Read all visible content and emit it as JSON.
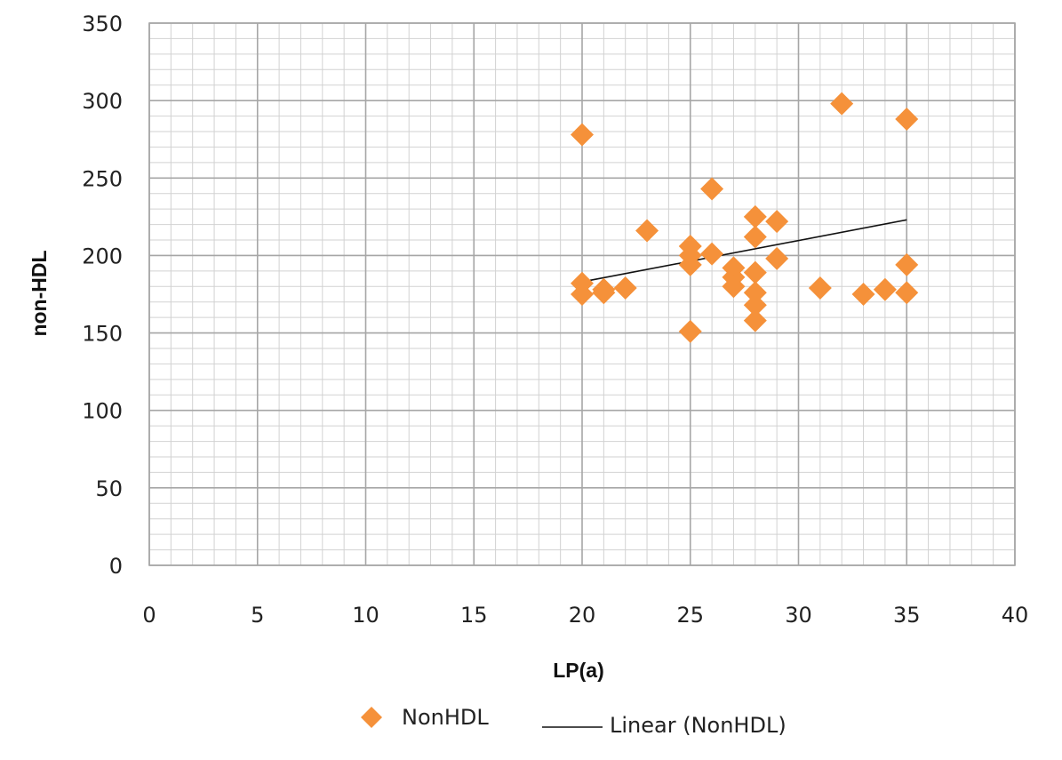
{
  "chart_data": {
    "type": "scatter",
    "xlabel": "LP(a)",
    "ylabel": "non-HDL",
    "xlim": [
      0,
      40
    ],
    "ylim": [
      0,
      350
    ],
    "x_ticks": [
      0,
      5,
      10,
      15,
      20,
      25,
      30,
      35,
      40
    ],
    "y_ticks": [
      0,
      50,
      100,
      150,
      200,
      250,
      300,
      350
    ],
    "grid": true,
    "legend_position": "bottom",
    "series": [
      {
        "name": "NonHDL",
        "marker": "diamond",
        "color": "#f5913a",
        "points": [
          {
            "x": 20,
            "y": 278
          },
          {
            "x": 20,
            "y": 182
          },
          {
            "x": 20,
            "y": 175
          },
          {
            "x": 21,
            "y": 178
          },
          {
            "x": 21,
            "y": 176
          },
          {
            "x": 22,
            "y": 179
          },
          {
            "x": 23,
            "y": 216
          },
          {
            "x": 25,
            "y": 206
          },
          {
            "x": 25,
            "y": 200
          },
          {
            "x": 25,
            "y": 194
          },
          {
            "x": 25,
            "y": 151
          },
          {
            "x": 26,
            "y": 243
          },
          {
            "x": 26,
            "y": 201
          },
          {
            "x": 27,
            "y": 192
          },
          {
            "x": 27,
            "y": 186
          },
          {
            "x": 27,
            "y": 180
          },
          {
            "x": 28,
            "y": 225
          },
          {
            "x": 28,
            "y": 212
          },
          {
            "x": 28,
            "y": 189
          },
          {
            "x": 28,
            "y": 176
          },
          {
            "x": 28,
            "y": 168
          },
          {
            "x": 28,
            "y": 158
          },
          {
            "x": 29,
            "y": 222
          },
          {
            "x": 29,
            "y": 198
          },
          {
            "x": 31,
            "y": 179
          },
          {
            "x": 32,
            "y": 298
          },
          {
            "x": 33,
            "y": 175
          },
          {
            "x": 34,
            "y": 178
          },
          {
            "x": 35,
            "y": 288
          },
          {
            "x": 35,
            "y": 194
          },
          {
            "x": 35,
            "y": 176
          }
        ]
      },
      {
        "name": "Linear (NonHDL)",
        "type": "line",
        "color": "#111111",
        "points": [
          {
            "x": 20,
            "y": 183
          },
          {
            "x": 35,
            "y": 223
          }
        ]
      }
    ]
  },
  "legend": {
    "series_label": "NonHDL",
    "trend_label": "Linear (NonHDL)"
  },
  "colors": {
    "marker": "#f5913a",
    "trendline": "#111111",
    "grid_major": "#a6a6a6",
    "grid_minor": "#d2d2d2"
  }
}
